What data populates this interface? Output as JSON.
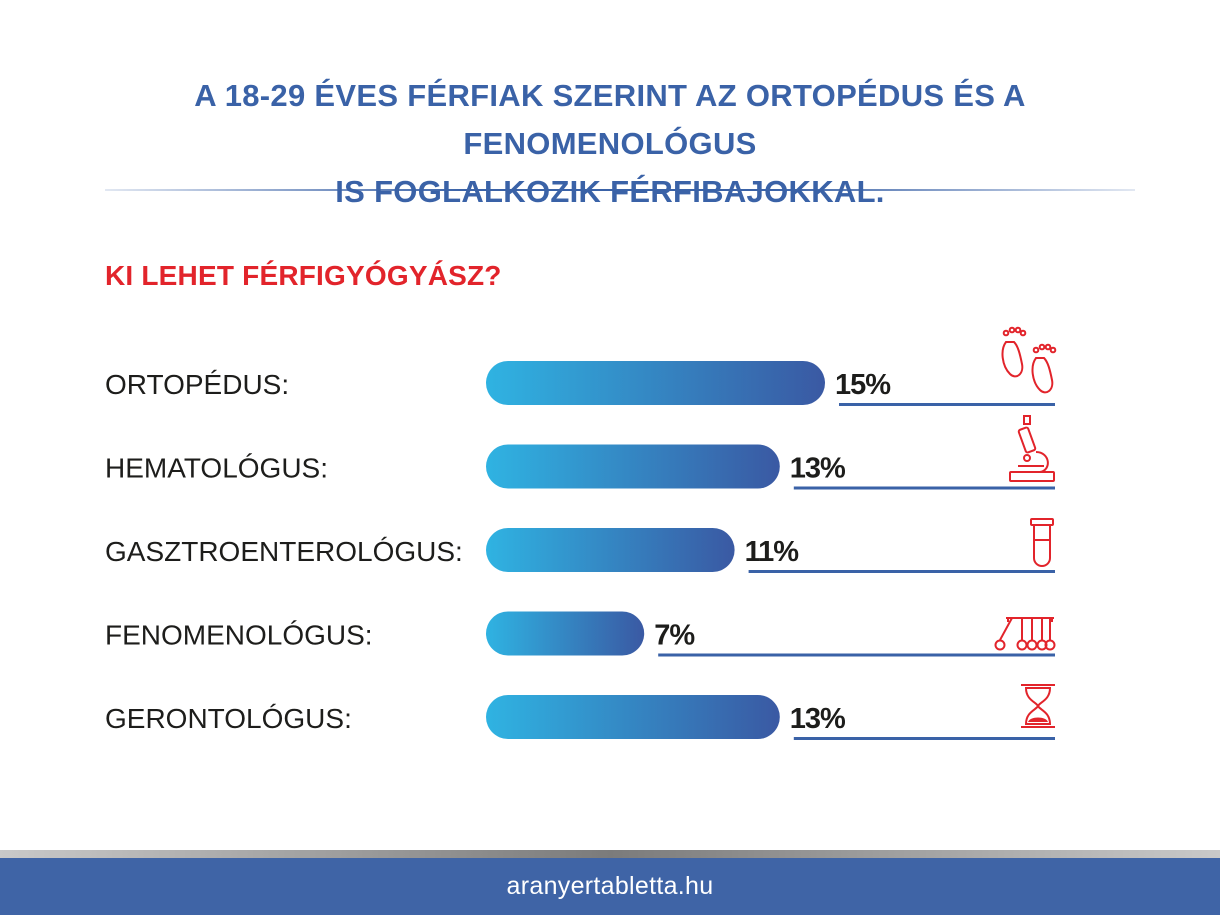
{
  "header": {
    "title_line1": "A 18-29 ÉVES FÉRFIAK SZERINT AZ ORTOPÉDUS ÉS A FENOMENOLÓGUS",
    "title_line2": "IS FOGLALKOZIK FÉRFIBAJOKKAL."
  },
  "footer": {
    "site": "aranyertabletta.hu"
  },
  "colors": {
    "title": "#3a62a7",
    "subtitle": "#e2242b",
    "bar_start": "#2fb3e2",
    "bar_end": "#3a59a3",
    "underline": "#3a62a7",
    "icon": "#e2242b",
    "footer_bg": "#3f64a6"
  },
  "chart_data": {
    "type": "bar",
    "orientation": "horizontal",
    "title": "KI LEHET FÉRFIGYÓGYÁSZ?",
    "categories": [
      "ORTOPÉDUS:",
      "HEMATOLÓGUS:",
      "GASZTROENTEROLÓGUS:",
      "FENOMENOLÓGUS:",
      "GERONTOLÓGUS:"
    ],
    "values": [
      15,
      13,
      11,
      7,
      13
    ],
    "labels": [
      "15%",
      "13%",
      "11%",
      "7%",
      "13%"
    ],
    "icons": [
      "feet-icon",
      "microscope-icon",
      "test-tube-icon",
      "newtons-cradle-icon",
      "hourglass-icon"
    ],
    "unit": "%",
    "grid": false,
    "legend": "none"
  }
}
